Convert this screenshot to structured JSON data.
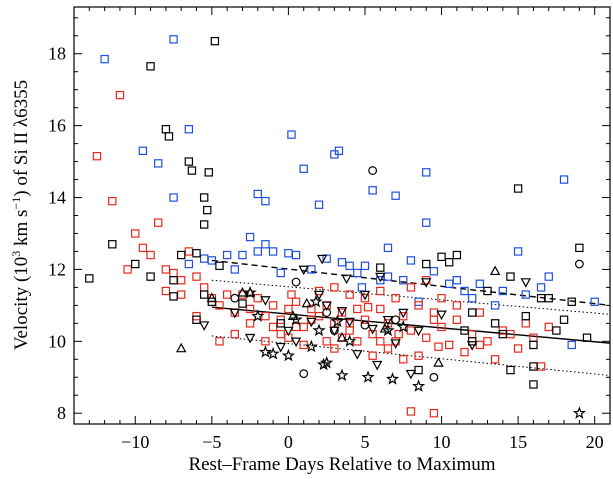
{
  "chart_data": {
    "type": "scatter",
    "title": "",
    "xlabel": "Rest–Frame Days Relative to Maximum",
    "ylabel_prefix": "Velocity (10",
    "ylabel_exp1": "3",
    "ylabel_mid": " km s",
    "ylabel_exp2": "−1",
    "ylabel_suffix": ") of Si II λ6355",
    "xlim": [
      -14,
      21
    ],
    "ylim": [
      7.7,
      19.3
    ],
    "xticks": [
      -10,
      -5,
      0,
      5,
      10,
      15,
      20
    ],
    "yticks": [
      8,
      10,
      12,
      14,
      16,
      18
    ],
    "grid": false,
    "colors": {
      "black": "#000000",
      "red": "#e8281c",
      "blue": "#1f4fe0"
    },
    "series": [
      {
        "marker": "square",
        "color": "#1f4fe0",
        "points": [
          [
            -12,
            17.85
          ],
          [
            -7.5,
            18.4
          ],
          [
            -9.5,
            15.3
          ],
          [
            -8.5,
            14.95
          ],
          [
            -6.5,
            15.9
          ],
          [
            -5.5,
            12.3
          ],
          [
            -5,
            12.25
          ],
          [
            -4,
            12.4
          ],
          [
            -3,
            12.4
          ],
          [
            -2,
            12.5
          ],
          [
            -1.5,
            12.7
          ],
          [
            -1,
            12.5
          ],
          [
            0,
            12.45
          ],
          [
            0.5,
            12.4
          ],
          [
            1,
            14.8
          ],
          [
            1.5,
            12.0
          ],
          [
            2,
            13.8
          ],
          [
            3,
            15.2
          ],
          [
            3.3,
            15.3
          ],
          [
            3.5,
            12.2
          ],
          [
            4,
            12.1
          ],
          [
            4.5,
            11.9
          ],
          [
            5,
            12.1
          ],
          [
            5.5,
            14.2
          ],
          [
            6,
            11.7
          ],
          [
            6.5,
            12.6
          ],
          [
            7,
            14.05
          ],
          [
            7.5,
            11.7
          ],
          [
            8,
            12.25
          ],
          [
            9,
            13.3
          ],
          [
            9.5,
            11.95
          ],
          [
            10.5,
            11.6
          ],
          [
            11,
            11.7
          ],
          [
            12,
            11.2
          ],
          [
            12.5,
            11.6
          ],
          [
            13.5,
            11.0
          ],
          [
            14,
            11.4
          ],
          [
            15,
            12.5
          ],
          [
            16.5,
            11.5
          ],
          [
            17,
            11.8
          ],
          [
            18.5,
            9.9
          ],
          [
            20,
            11.1
          ],
          [
            -3.5,
            12.0
          ],
          [
            -2.5,
            12.9
          ],
          [
            -1.5,
            13.9
          ],
          [
            0.2,
            15.75
          ],
          [
            2.5,
            12.3
          ],
          [
            8.5,
            11.1
          ],
          [
            9,
            14.7
          ],
          [
            -7.5,
            14.0
          ],
          [
            -6.5,
            12.15
          ],
          [
            15.5,
            11.3
          ],
          [
            11.5,
            11.4
          ],
          [
            6.5,
            11.8
          ],
          [
            4.8,
            11.5
          ],
          [
            -0.5,
            11.9
          ],
          [
            18,
            14.5
          ],
          [
            -2,
            14.1
          ]
        ]
      },
      {
        "marker": "square",
        "color": "#e8281c",
        "points": [
          [
            -12.5,
            15.15
          ],
          [
            -11,
            16.85
          ],
          [
            -11.5,
            13.9
          ],
          [
            -10,
            13.0
          ],
          [
            -9,
            12.4
          ],
          [
            -8.5,
            13.3
          ],
          [
            -8,
            12.0
          ],
          [
            -7.5,
            11.9
          ],
          [
            -7,
            11.7
          ],
          [
            -6.5,
            12.5
          ],
          [
            -6,
            11.8
          ],
          [
            -5.5,
            11.5
          ],
          [
            -5,
            11.2
          ],
          [
            -4.5,
            11.0
          ],
          [
            -4,
            11.3
          ],
          [
            -3.5,
            10.8
          ],
          [
            -3,
            11.3
          ],
          [
            -2.5,
            10.9
          ],
          [
            -2,
            11.2
          ],
          [
            -1.5,
            10.7
          ],
          [
            -1,
            11.0
          ],
          [
            -0.5,
            10.6
          ],
          [
            0,
            10.9
          ],
          [
            0.5,
            11.1
          ],
          [
            1,
            10.4
          ],
          [
            1.5,
            10.9
          ],
          [
            2,
            10.7
          ],
          [
            2.5,
            11.0
          ],
          [
            3,
            10.5
          ],
          [
            3.5,
            10.8
          ],
          [
            4,
            10.3
          ],
          [
            4.5,
            10.9
          ],
          [
            5,
            10.6
          ],
          [
            5.5,
            10.2
          ],
          [
            6,
            10.9
          ],
          [
            6.5,
            10.5
          ],
          [
            7,
            10.0
          ],
          [
            7.5,
            10.7
          ],
          [
            8,
            10.3
          ],
          [
            8.5,
            11.0
          ],
          [
            9,
            10.1
          ],
          [
            9.5,
            10.6
          ],
          [
            10,
            10.4
          ],
          [
            10.5,
            9.9
          ],
          [
            11,
            10.6
          ],
          [
            11.5,
            9.7
          ],
          [
            12,
            10.2
          ],
          [
            12.5,
            10.8
          ],
          [
            13,
            10.0
          ],
          [
            13.5,
            9.5
          ],
          [
            14,
            10.3
          ],
          [
            15,
            9.8
          ],
          [
            15.5,
            10.5
          ],
          [
            16,
            10.1
          ],
          [
            16.5,
            9.3
          ],
          [
            -4.5,
            10.0
          ],
          [
            -3.5,
            10.2
          ],
          [
            -2.5,
            10.5
          ],
          [
            -1.5,
            10.0
          ],
          [
            -0.5,
            10.2
          ],
          [
            0.5,
            10.4
          ],
          [
            1.5,
            10.6
          ],
          [
            2.5,
            10.0
          ],
          [
            3.5,
            10.1
          ],
          [
            4.5,
            10.0
          ],
          [
            5.5,
            9.6
          ],
          [
            6.5,
            9.8
          ],
          [
            7.5,
            9.5
          ],
          [
            8.5,
            9.6
          ],
          [
            9.5,
            10.8
          ],
          [
            2,
            11.4
          ],
          [
            3,
            11.5
          ],
          [
            4,
            11.3
          ],
          [
            5,
            11.2
          ],
          [
            6,
            11.4
          ],
          [
            7,
            11.2
          ],
          [
            8,
            11.5
          ],
          [
            9,
            11.7
          ],
          [
            10,
            11.2
          ],
          [
            11,
            11.0
          ],
          [
            -6,
            10.7
          ],
          [
            -7,
            11.3
          ],
          [
            -8,
            11.4
          ],
          [
            -9.5,
            12.6
          ],
          [
            -10.5,
            12.0
          ],
          [
            0,
            10.1
          ],
          [
            1,
            9.9
          ],
          [
            3,
            9.8
          ],
          [
            4,
            10.5
          ],
          [
            6,
            10.0
          ],
          [
            8,
            8.05
          ],
          [
            9.5,
            8.0
          ],
          [
            12.5,
            9.9
          ],
          [
            14.5,
            10.2
          ],
          [
            17,
            10.4
          ],
          [
            -1,
            10.4
          ],
          [
            0.2,
            11.3
          ],
          [
            5.2,
            10.95
          ],
          [
            7.2,
            10.2
          ],
          [
            9.8,
            9.85
          ]
        ]
      },
      {
        "marker": "square",
        "color": "#000000",
        "points": [
          [
            -13,
            11.75
          ],
          [
            -11.5,
            12.7
          ],
          [
            -10,
            12.15
          ],
          [
            -9,
            17.65
          ],
          [
            -8,
            15.9
          ],
          [
            -7.8,
            15.7
          ],
          [
            -6.5,
            15.0
          ],
          [
            -6.3,
            14.75
          ],
          [
            -5.5,
            14.0
          ],
          [
            -5.3,
            13.65
          ],
          [
            -5.2,
            14.7
          ],
          [
            -4.8,
            18.35
          ],
          [
            -5.5,
            13.25
          ],
          [
            -4.5,
            12.1
          ],
          [
            -6,
            12.45
          ],
          [
            -7,
            12.4
          ],
          [
            -7.5,
            11.7
          ],
          [
            -7.5,
            11.25
          ],
          [
            -5.5,
            11.3
          ],
          [
            -5,
            11.1
          ],
          [
            -6,
            10.6
          ],
          [
            -9,
            11.8
          ],
          [
            6,
            12.05
          ],
          [
            9,
            12.15
          ],
          [
            10.5,
            12.2
          ],
          [
            11,
            12.4
          ],
          [
            13,
            11.4
          ],
          [
            13.5,
            10.5
          ],
          [
            14,
            10.2
          ],
          [
            14.5,
            11.8
          ],
          [
            15,
            14.25
          ],
          [
            15.5,
            10.7
          ],
          [
            16,
            9.9
          ],
          [
            16,
            8.8
          ],
          [
            16.5,
            11.2
          ],
          [
            17,
            11.2
          ],
          [
            18,
            10.6
          ],
          [
            19,
            12.6
          ],
          [
            19.5,
            10.1
          ],
          [
            18.5,
            11.1
          ],
          [
            12,
            10.8
          ],
          [
            11.5,
            10.3
          ],
          [
            12,
            10.0
          ],
          [
            17.5,
            10.3
          ],
          [
            8.5,
            9.2
          ],
          [
            14.5,
            9.2
          ],
          [
            16,
            9.3
          ],
          [
            10,
            12.35
          ],
          [
            -0.5,
            10.5
          ],
          [
            -3,
            11.05
          ]
        ]
      },
      {
        "marker": "circle",
        "color": "#000000",
        "points": [
          [
            5.5,
            14.75
          ],
          [
            19,
            12.15
          ],
          [
            0.5,
            11.65
          ],
          [
            2.5,
            10.8
          ],
          [
            1,
            9.1
          ],
          [
            3,
            10.3
          ],
          [
            7,
            10.6
          ],
          [
            9.5,
            9.0
          ],
          [
            5,
            10.45
          ],
          [
            -3.5,
            11.2
          ]
        ]
      },
      {
        "marker": "triangle-up",
        "color": "#000000",
        "points": [
          [
            -7,
            9.8
          ],
          [
            -5,
            11.2
          ],
          [
            -3,
            11.35
          ],
          [
            0.3,
            10.7
          ],
          [
            3.5,
            10.1
          ],
          [
            6.3,
            10.35
          ],
          [
            9.8,
            9.4
          ],
          [
            13.5,
            11.95
          ],
          [
            -2.5,
            11.35
          ],
          [
            1.2,
            11.05
          ]
        ]
      },
      {
        "marker": "triangle-down",
        "color": "#000000",
        "points": [
          [
            -5.5,
            10.45
          ],
          [
            -2.5,
            10.1
          ],
          [
            -1.5,
            11.15
          ],
          [
            0,
            10.3
          ],
          [
            1.5,
            10.55
          ],
          [
            2.5,
            11.0
          ],
          [
            3,
            10.3
          ],
          [
            3.5,
            10.85
          ],
          [
            4,
            10.55
          ],
          [
            5,
            11.3
          ],
          [
            5.5,
            10.35
          ],
          [
            6.5,
            10.6
          ],
          [
            7,
            9.95
          ],
          [
            7.5,
            10.8
          ],
          [
            8.5,
            10.3
          ],
          [
            9,
            11.65
          ],
          [
            10,
            10.75
          ],
          [
            2,
            11.3
          ],
          [
            1,
            12.0
          ],
          [
            5.8,
            9.35
          ],
          [
            -3.5,
            10.8
          ],
          [
            15.5,
            11.65
          ],
          [
            -0.5,
            9.85
          ],
          [
            4.5,
            9.65
          ],
          [
            6,
            11.8
          ],
          [
            3.8,
            11.75
          ],
          [
            8,
            9.1
          ],
          [
            12,
            9.9
          ],
          [
            0.5,
            10.0
          ],
          [
            2.2,
            12.3
          ]
        ]
      },
      {
        "marker": "star",
        "color": "#000000",
        "points": [
          [
            -2.5,
            11.35
          ],
          [
            -1.5,
            9.7
          ],
          [
            -1,
            9.65
          ],
          [
            0,
            9.6
          ],
          [
            1.5,
            9.85
          ],
          [
            2.5,
            9.4
          ],
          [
            2.3,
            9.35
          ],
          [
            3.5,
            9.05
          ],
          [
            5.2,
            9.0
          ],
          [
            6.8,
            8.95
          ],
          [
            7.5,
            10.4
          ],
          [
            8.5,
            8.75
          ],
          [
            2,
            10.3
          ],
          [
            0.5,
            10.6
          ],
          [
            4,
            10.0
          ],
          [
            6.5,
            10.3
          ],
          [
            19,
            8.0
          ],
          [
            -2,
            10.7
          ],
          [
            1.8,
            11.1
          ],
          [
            3.2,
            10.55
          ]
        ]
      }
    ],
    "fits": [
      {
        "style": "solid",
        "x": [
          -5,
          21
        ],
        "y": [
          10.95,
          9.95
        ]
      },
      {
        "style": "dashed",
        "x": [
          -5,
          21
        ],
        "y": [
          12.25,
          11.0
        ]
      },
      {
        "style": "dotted",
        "x": [
          -5,
          21
        ],
        "y": [
          11.7,
          10.75
        ]
      },
      {
        "style": "dotted",
        "x": [
          -5,
          21
        ],
        "y": [
          10.15,
          9.05
        ]
      }
    ]
  }
}
